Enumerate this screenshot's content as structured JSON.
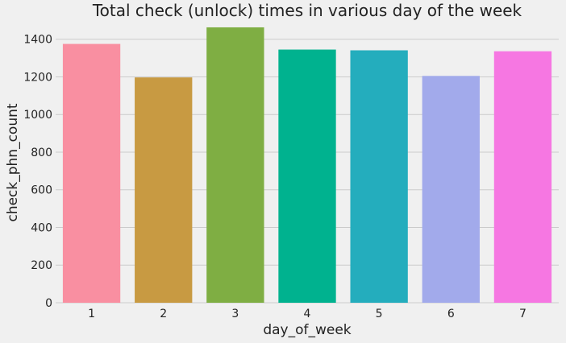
{
  "chart_data": {
    "type": "bar",
    "title": "Total check (unlock) times in various day of the week",
    "xlabel": "day_of_week",
    "ylabel": "check_phn_count",
    "categories": [
      "1",
      "2",
      "3",
      "4",
      "5",
      "6",
      "7"
    ],
    "values": [
      1375,
      1197,
      1463,
      1345,
      1341,
      1205,
      1336
    ],
    "ylim": [
      0,
      1480
    ],
    "yticks": [
      0,
      200,
      400,
      600,
      800,
      1000,
      1200,
      1400
    ],
    "grid": true,
    "colors": [
      "#f98fa1",
      "#c89a42",
      "#7fae43",
      "#00b28f",
      "#24adbd",
      "#a2aaeb",
      "#f677e2"
    ],
    "background": "#f0f0f0"
  }
}
